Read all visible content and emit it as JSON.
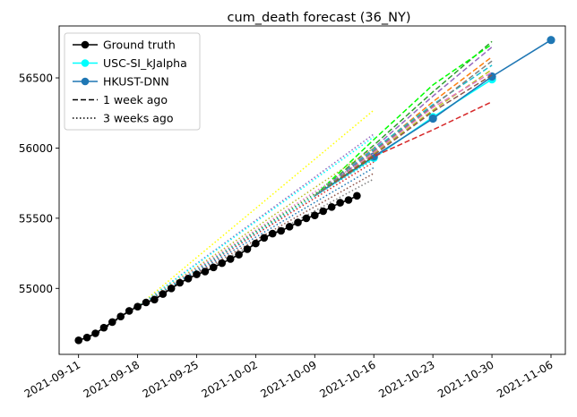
{
  "chart_data": {
    "type": "line",
    "title": "cum_death forecast (36_NY)",
    "xlabel": "",
    "ylabel": "",
    "x_axis_dates": [
      "2021-09-11",
      "2021-09-18",
      "2021-09-25",
      "2021-10-02",
      "2021-10-09",
      "2021-10-16",
      "2021-10-23",
      "2021-10-30",
      "2021-11-06"
    ],
    "y_ticks": [
      55000,
      55500,
      56000,
      56500
    ],
    "xlim": [
      "2021-09-09",
      "2021-11-07"
    ],
    "ylim": [
      54530,
      56870
    ],
    "grid": false,
    "legend_position": "top-left",
    "legend": [
      {
        "label": "Ground truth",
        "color": "#000000",
        "style": "solid",
        "marker": true
      },
      {
        "label": "USC-SI_kJalpha",
        "color": "#00ffff",
        "style": "solid",
        "marker": true
      },
      {
        "label": "HKUST-DNN",
        "color": "#1f77b4",
        "style": "solid",
        "marker": true
      },
      {
        "label": "1 week ago",
        "color": "#000000",
        "style": "dashed",
        "marker": false
      },
      {
        "label": "3 weeks ago",
        "color": "#000000",
        "style": "dotted",
        "marker": false
      }
    ],
    "ground_truth": {
      "name": "Ground truth",
      "color": "#000000",
      "points": [
        [
          "2021-09-11",
          54630
        ],
        [
          "2021-09-12",
          54650
        ],
        [
          "2021-09-13",
          54680
        ],
        [
          "2021-09-14",
          54720
        ],
        [
          "2021-09-15",
          54760
        ],
        [
          "2021-09-16",
          54800
        ],
        [
          "2021-09-17",
          54840
        ],
        [
          "2021-09-18",
          54870
        ],
        [
          "2021-09-19",
          54900
        ],
        [
          "2021-09-20",
          54920
        ],
        [
          "2021-09-21",
          54960
        ],
        [
          "2021-09-22",
          55000
        ],
        [
          "2021-09-23",
          55040
        ],
        [
          "2021-09-24",
          55070
        ],
        [
          "2021-09-25",
          55100
        ],
        [
          "2021-09-26",
          55120
        ],
        [
          "2021-09-27",
          55150
        ],
        [
          "2021-09-28",
          55180
        ],
        [
          "2021-09-29",
          55210
        ],
        [
          "2021-09-30",
          55240
        ],
        [
          "2021-10-01",
          55280
        ],
        [
          "2021-10-02",
          55320
        ],
        [
          "2021-10-03",
          55360
        ],
        [
          "2021-10-04",
          55390
        ],
        [
          "2021-10-05",
          55410
        ],
        [
          "2021-10-06",
          55440
        ],
        [
          "2021-10-07",
          55470
        ],
        [
          "2021-10-08",
          55500
        ],
        [
          "2021-10-09",
          55520
        ],
        [
          "2021-10-10",
          55550
        ],
        [
          "2021-10-11",
          55580
        ],
        [
          "2021-10-12",
          55610
        ],
        [
          "2021-10-13",
          55630
        ],
        [
          "2021-10-14",
          55660
        ]
      ]
    },
    "forecast_series": [
      {
        "name": "USC-SI_kJalpha",
        "color": "#00ffff",
        "style": "solid",
        "marker": true,
        "points": [
          [
            "2021-10-09",
            55660
          ],
          [
            "2021-10-16",
            55930
          ],
          [
            "2021-10-23",
            56220
          ],
          [
            "2021-10-30",
            56490
          ]
        ]
      },
      {
        "name": "HKUST-DNN",
        "color": "#1f77b4",
        "style": "solid",
        "marker": true,
        "points": [
          [
            "2021-10-09",
            55660
          ],
          [
            "2021-10-16",
            55940
          ],
          [
            "2021-10-23",
            56210
          ],
          [
            "2021-10-30",
            56510
          ],
          [
            "2021-11-06",
            56770
          ]
        ]
      },
      {
        "style": "dashed",
        "color": "#d62728",
        "points": [
          [
            "2021-10-09",
            55660
          ],
          [
            "2021-10-16",
            55940
          ],
          [
            "2021-10-23",
            56130
          ],
          [
            "2021-10-30",
            56330
          ]
        ]
      },
      {
        "style": "dashed",
        "color": "#ff7f0e",
        "points": [
          [
            "2021-10-09",
            55660
          ],
          [
            "2021-10-16",
            55980
          ],
          [
            "2021-10-23",
            56330
          ],
          [
            "2021-10-30",
            56650
          ]
        ]
      },
      {
        "style": "dashed",
        "color": "#2ca02c",
        "points": [
          [
            "2021-10-09",
            55660
          ],
          [
            "2021-10-16",
            56020
          ],
          [
            "2021-10-23",
            56400
          ],
          [
            "2021-10-30",
            56760
          ]
        ]
      },
      {
        "style": "dashed",
        "color": "#00ff00",
        "points": [
          [
            "2021-10-09",
            55660
          ],
          [
            "2021-10-16",
            56060
          ],
          [
            "2021-10-23",
            56450
          ],
          [
            "2021-10-30",
            56740
          ]
        ]
      },
      {
        "style": "dashed",
        "color": "#9467bd",
        "points": [
          [
            "2021-10-09",
            55660
          ],
          [
            "2021-10-16",
            56000
          ],
          [
            "2021-10-23",
            56370
          ],
          [
            "2021-10-30",
            56720
          ]
        ]
      },
      {
        "style": "dashed",
        "color": "#bcbd22",
        "points": [
          [
            "2021-10-09",
            55660
          ],
          [
            "2021-10-16",
            55960
          ],
          [
            "2021-10-23",
            56270
          ],
          [
            "2021-10-30",
            56560
          ]
        ]
      },
      {
        "style": "dashed",
        "color": "#17becf",
        "points": [
          [
            "2021-10-09",
            55660
          ],
          [
            "2021-10-16",
            55990
          ],
          [
            "2021-10-23",
            56310
          ],
          [
            "2021-10-30",
            56590
          ]
        ]
      },
      {
        "style": "dashed",
        "color": "#e377c2",
        "points": [
          [
            "2021-10-09",
            55660
          ],
          [
            "2021-10-16",
            55970
          ],
          [
            "2021-10-23",
            56290
          ],
          [
            "2021-10-30",
            56540
          ]
        ]
      },
      {
        "style": "dashed",
        "color": "#8c564b",
        "points": [
          [
            "2021-10-09",
            55660
          ],
          [
            "2021-10-16",
            55950
          ],
          [
            "2021-10-23",
            56260
          ],
          [
            "2021-10-30",
            56520
          ]
        ]
      },
      {
        "style": "dashed",
        "color": "#7f7f7f",
        "points": [
          [
            "2021-10-09",
            55660
          ],
          [
            "2021-10-16",
            55980
          ],
          [
            "2021-10-23",
            56300
          ],
          [
            "2021-10-30",
            56620
          ]
        ]
      },
      {
        "style": "dotted",
        "color": "#000000",
        "points": [
          [
            "2021-09-13",
            54670
          ],
          [
            "2021-09-18",
            54880
          ]
        ]
      },
      {
        "style": "dotted",
        "color": "#ffff00",
        "points": [
          [
            "2021-09-18",
            54870
          ],
          [
            "2021-10-16",
            56270
          ]
        ]
      },
      {
        "style": "dotted",
        "color": "#9467bd",
        "points": [
          [
            "2021-09-18",
            54870
          ],
          [
            "2021-10-16",
            56100
          ]
        ]
      },
      {
        "style": "dotted",
        "color": "#00ffff",
        "points": [
          [
            "2021-09-18",
            54870
          ],
          [
            "2021-10-16",
            56080
          ]
        ]
      },
      {
        "style": "dotted",
        "color": "#bcbd22",
        "points": [
          [
            "2021-09-18",
            54870
          ],
          [
            "2021-10-16",
            56000
          ]
        ]
      },
      {
        "style": "dotted",
        "color": "#d62728",
        "points": [
          [
            "2021-09-18",
            54870
          ],
          [
            "2021-10-16",
            55900
          ]
        ]
      },
      {
        "style": "dotted",
        "color": "#2ca02c",
        "points": [
          [
            "2021-09-18",
            54870
          ],
          [
            "2021-10-16",
            55940
          ]
        ]
      },
      {
        "style": "dotted",
        "color": "#1f77b4",
        "points": [
          [
            "2021-09-18",
            54870
          ],
          [
            "2021-10-16",
            55860
          ]
        ]
      },
      {
        "style": "dotted",
        "color": "#8c564b",
        "points": [
          [
            "2021-09-18",
            54870
          ],
          [
            "2021-10-16",
            55820
          ]
        ]
      },
      {
        "style": "dotted",
        "color": "#e377c2",
        "points": [
          [
            "2021-09-18",
            54870
          ],
          [
            "2021-10-16",
            55960
          ]
        ]
      },
      {
        "style": "dotted",
        "color": "#7f7f7f",
        "points": [
          [
            "2021-09-18",
            54870
          ],
          [
            "2021-10-16",
            55780
          ]
        ]
      },
      {
        "style": "dotted",
        "color": "#17becf",
        "points": [
          [
            "2021-09-18",
            54870
          ],
          [
            "2021-10-16",
            55920
          ]
        ]
      }
    ]
  }
}
